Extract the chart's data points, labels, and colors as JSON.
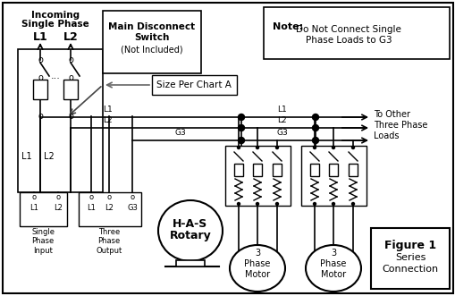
{
  "bg_color": "#ffffff",
  "line_color": "#000000",
  "text_color": "#000000",
  "note_bold": "Note:",
  "note_text": "  Do Not Connect Single\n         Phase Loads to G3",
  "figure_line1": "Figure 1",
  "figure_line2": "Series",
  "figure_line3": "Connection",
  "incoming_line1": "Incoming",
  "incoming_line2": "Single Phase",
  "main_switch_line1": "Main Disconnect",
  "main_switch_line2": "Switch",
  "main_switch_line3": "(Not Included)",
  "size_chart_text": "Size Per Chart A",
  "has_line1": "H-A-S",
  "has_line2": "Rotary",
  "single_phase_lines": "Single\nPhase\nInput",
  "three_phase_out_lines": "Three\nPhase\nOutput",
  "motor_lines": "3\nPhase\nMotor",
  "to_other_lines": "To Other\nThree Phase\nLoads",
  "L1": "L1",
  "L2": "L2",
  "G3": "G3"
}
